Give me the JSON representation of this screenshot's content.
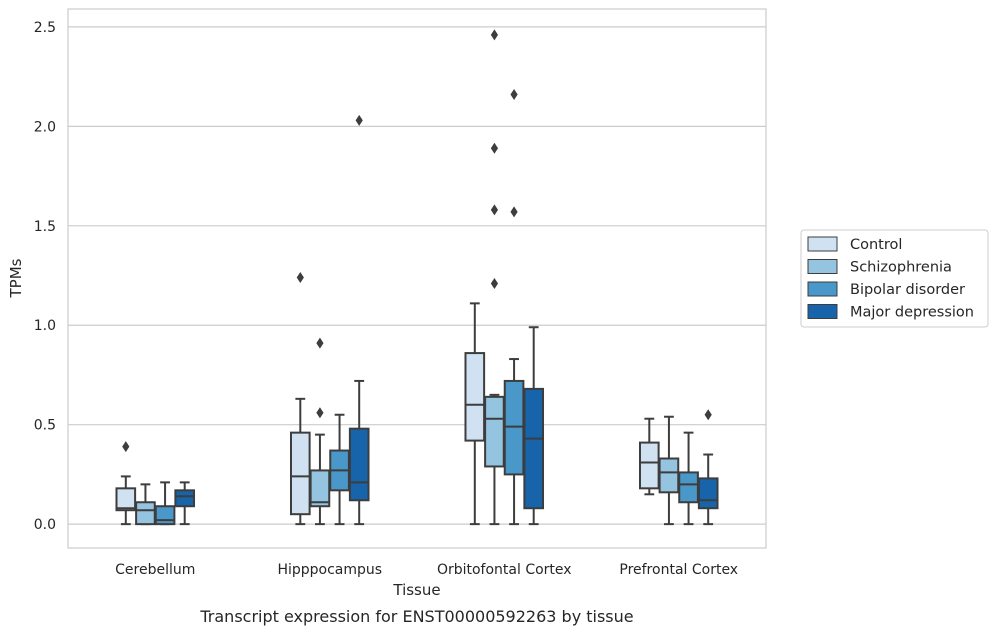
{
  "chart_data": {
    "type": "box",
    "caption": "Transcript expression for ENST00000592263 by tissue",
    "xlabel": "Tissue",
    "ylabel": "TPMs",
    "ylim": [
      -0.12,
      2.59
    ],
    "yticks": [
      0.0,
      0.5,
      1.0,
      1.5,
      2.0,
      2.5
    ],
    "ytick_labels": [
      "0.0",
      "0.5",
      "1.0",
      "1.5",
      "2.0",
      "2.5"
    ],
    "grid": true,
    "legend_position": "right",
    "categories": [
      "Cerebellum",
      "Hipppocampus",
      "Orbitofontal Cortex",
      "Prefrontal Cortex"
    ],
    "series": [
      {
        "name": "Control",
        "color": "#d0e1f2",
        "boxes": [
          {
            "whisker_low": 0.0,
            "q1": 0.07,
            "median": 0.08,
            "q3": 0.18,
            "whisker_high": 0.24,
            "outliers": [
              0.39
            ]
          },
          {
            "whisker_low": 0.0,
            "q1": 0.05,
            "median": 0.24,
            "q3": 0.46,
            "whisker_high": 0.63,
            "outliers": [
              1.24
            ]
          },
          {
            "whisker_low": 0.0,
            "q1": 0.42,
            "median": 0.6,
            "q3": 0.86,
            "whisker_high": 1.11,
            "outliers": []
          },
          {
            "whisker_low": 0.15,
            "q1": 0.18,
            "median": 0.31,
            "q3": 0.41,
            "whisker_high": 0.53,
            "outliers": []
          }
        ]
      },
      {
        "name": "Schizophrenia",
        "color": "#94c4df",
        "boxes": [
          {
            "whisker_low": 0.0,
            "q1": 0.0,
            "median": 0.07,
            "q3": 0.11,
            "whisker_high": 0.2,
            "outliers": []
          },
          {
            "whisker_low": 0.0,
            "q1": 0.09,
            "median": 0.11,
            "q3": 0.27,
            "whisker_high": 0.45,
            "outliers": [
              0.56,
              0.91
            ]
          },
          {
            "whisker_low": 0.0,
            "q1": 0.29,
            "median": 0.53,
            "q3": 0.64,
            "whisker_high": 0.65,
            "outliers": [
              1.21,
              1.58,
              1.89,
              2.46
            ]
          },
          {
            "whisker_low": 0.0,
            "q1": 0.16,
            "median": 0.26,
            "q3": 0.33,
            "whisker_high": 0.54,
            "outliers": []
          }
        ]
      },
      {
        "name": "Bipolar disorder",
        "color": "#4a98c9",
        "boxes": [
          {
            "whisker_low": 0.0,
            "q1": 0.0,
            "median": 0.02,
            "q3": 0.09,
            "whisker_high": 0.21,
            "outliers": []
          },
          {
            "whisker_low": 0.0,
            "q1": 0.17,
            "median": 0.27,
            "q3": 0.37,
            "whisker_high": 0.55,
            "outliers": []
          },
          {
            "whisker_low": 0.0,
            "q1": 0.25,
            "median": 0.49,
            "q3": 0.72,
            "whisker_high": 0.83,
            "outliers": [
              1.57,
              2.16
            ]
          },
          {
            "whisker_low": 0.0,
            "q1": 0.11,
            "median": 0.2,
            "q3": 0.26,
            "whisker_high": 0.46,
            "outliers": []
          }
        ]
      },
      {
        "name": "Major depression",
        "color": "#1764ab",
        "boxes": [
          {
            "whisker_low": 0.0,
            "q1": 0.09,
            "median": 0.14,
            "q3": 0.17,
            "whisker_high": 0.21,
            "outliers": []
          },
          {
            "whisker_low": 0.0,
            "q1": 0.12,
            "median": 0.21,
            "q3": 0.48,
            "whisker_high": 0.72,
            "outliers": [
              2.03
            ]
          },
          {
            "whisker_low": 0.0,
            "q1": 0.08,
            "median": 0.43,
            "q3": 0.68,
            "whisker_high": 0.99,
            "outliers": []
          },
          {
            "whisker_low": 0.0,
            "q1": 0.08,
            "median": 0.12,
            "q3": 0.23,
            "whisker_high": 0.35,
            "outliers": [
              0.55
            ]
          }
        ]
      }
    ]
  }
}
